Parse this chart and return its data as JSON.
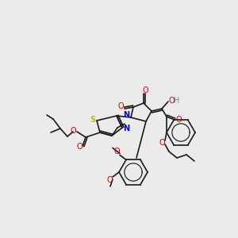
{
  "bg_color": "#ebebeb",
  "bond_color": "#1a1a1a",
  "atom_colors": {
    "N": "#0000cc",
    "O": "#cc0000",
    "S": "#bbbb00",
    "H": "#5a9a9a",
    "C": "#1a1a1a"
  },
  "figsize": [
    3.0,
    3.0
  ],
  "dpi": 100
}
